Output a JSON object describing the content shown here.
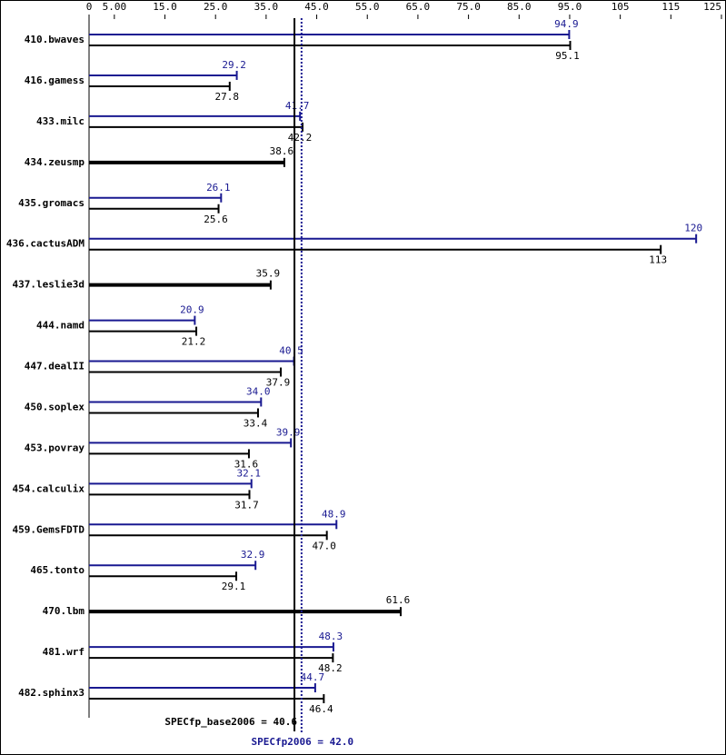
{
  "chart_data": {
    "type": "bar",
    "categories": [
      "410.bwaves",
      "416.gamess",
      "433.milc",
      "434.zeusmp",
      "435.gromacs",
      "436.cactusADM",
      "437.leslie3d",
      "444.namd",
      "447.dealII",
      "450.soplex",
      "453.povray",
      "454.calculix",
      "459.GemsFDTD",
      "465.tonto",
      "470.lbm",
      "481.wrf",
      "482.sphinx3"
    ],
    "series": [
      {
        "name": "peak",
        "color": "#191991",
        "values": [
          94.9,
          29.2,
          41.7,
          null,
          26.1,
          120,
          null,
          20.9,
          40.5,
          34.0,
          39.9,
          32.1,
          48.9,
          32.9,
          null,
          48.3,
          44.7
        ],
        "value_labels": [
          "94.9",
          "29.2",
          "41.7",
          null,
          "26.1",
          "120",
          null,
          "20.9",
          "40.5",
          "34.0",
          "39.9",
          "32.1",
          "48.9",
          "32.9",
          null,
          "48.3",
          "44.7"
        ]
      },
      {
        "name": "base",
        "color": "#000000",
        "values": [
          95.1,
          27.8,
          42.2,
          38.6,
          25.6,
          113,
          35.9,
          21.2,
          37.9,
          33.4,
          31.6,
          31.7,
          47.0,
          29.1,
          61.6,
          48.2,
          46.4
        ],
        "value_labels": [
          "95.1",
          "27.8",
          "42.2",
          "38.6",
          "25.6",
          "113",
          "35.9",
          "21.2",
          "37.9",
          "33.4",
          "31.6",
          "31.7",
          "47.0",
          "29.1",
          "61.6",
          "48.2",
          "46.4"
        ]
      }
    ],
    "xlim": [
      0,
      125
    ],
    "xticks": [
      0,
      {
        "value": 5,
        "label": "5.00"
      },
      {
        "value": 15,
        "label": "15.0"
      },
      {
        "value": 25,
        "label": "25.0"
      },
      {
        "value": 35,
        "label": "35.0"
      },
      {
        "value": 45,
        "label": "45.0"
      },
      {
        "value": 55,
        "label": "55.0"
      },
      {
        "value": 65,
        "label": "65.0"
      },
      {
        "value": 75,
        "label": "75.0"
      },
      {
        "value": 85,
        "label": "85.0"
      },
      {
        "value": 95,
        "label": "95.0"
      },
      105,
      115,
      125
    ],
    "reference_lines": [
      {
        "label": "SPECfp_base2006 = 40.6",
        "value": 40.6,
        "color": "#000000",
        "style": "solid"
      },
      {
        "label": "SPECfp2006 = 42.0",
        "value": 42.0,
        "color": "#191991",
        "style": "dotted"
      }
    ]
  }
}
